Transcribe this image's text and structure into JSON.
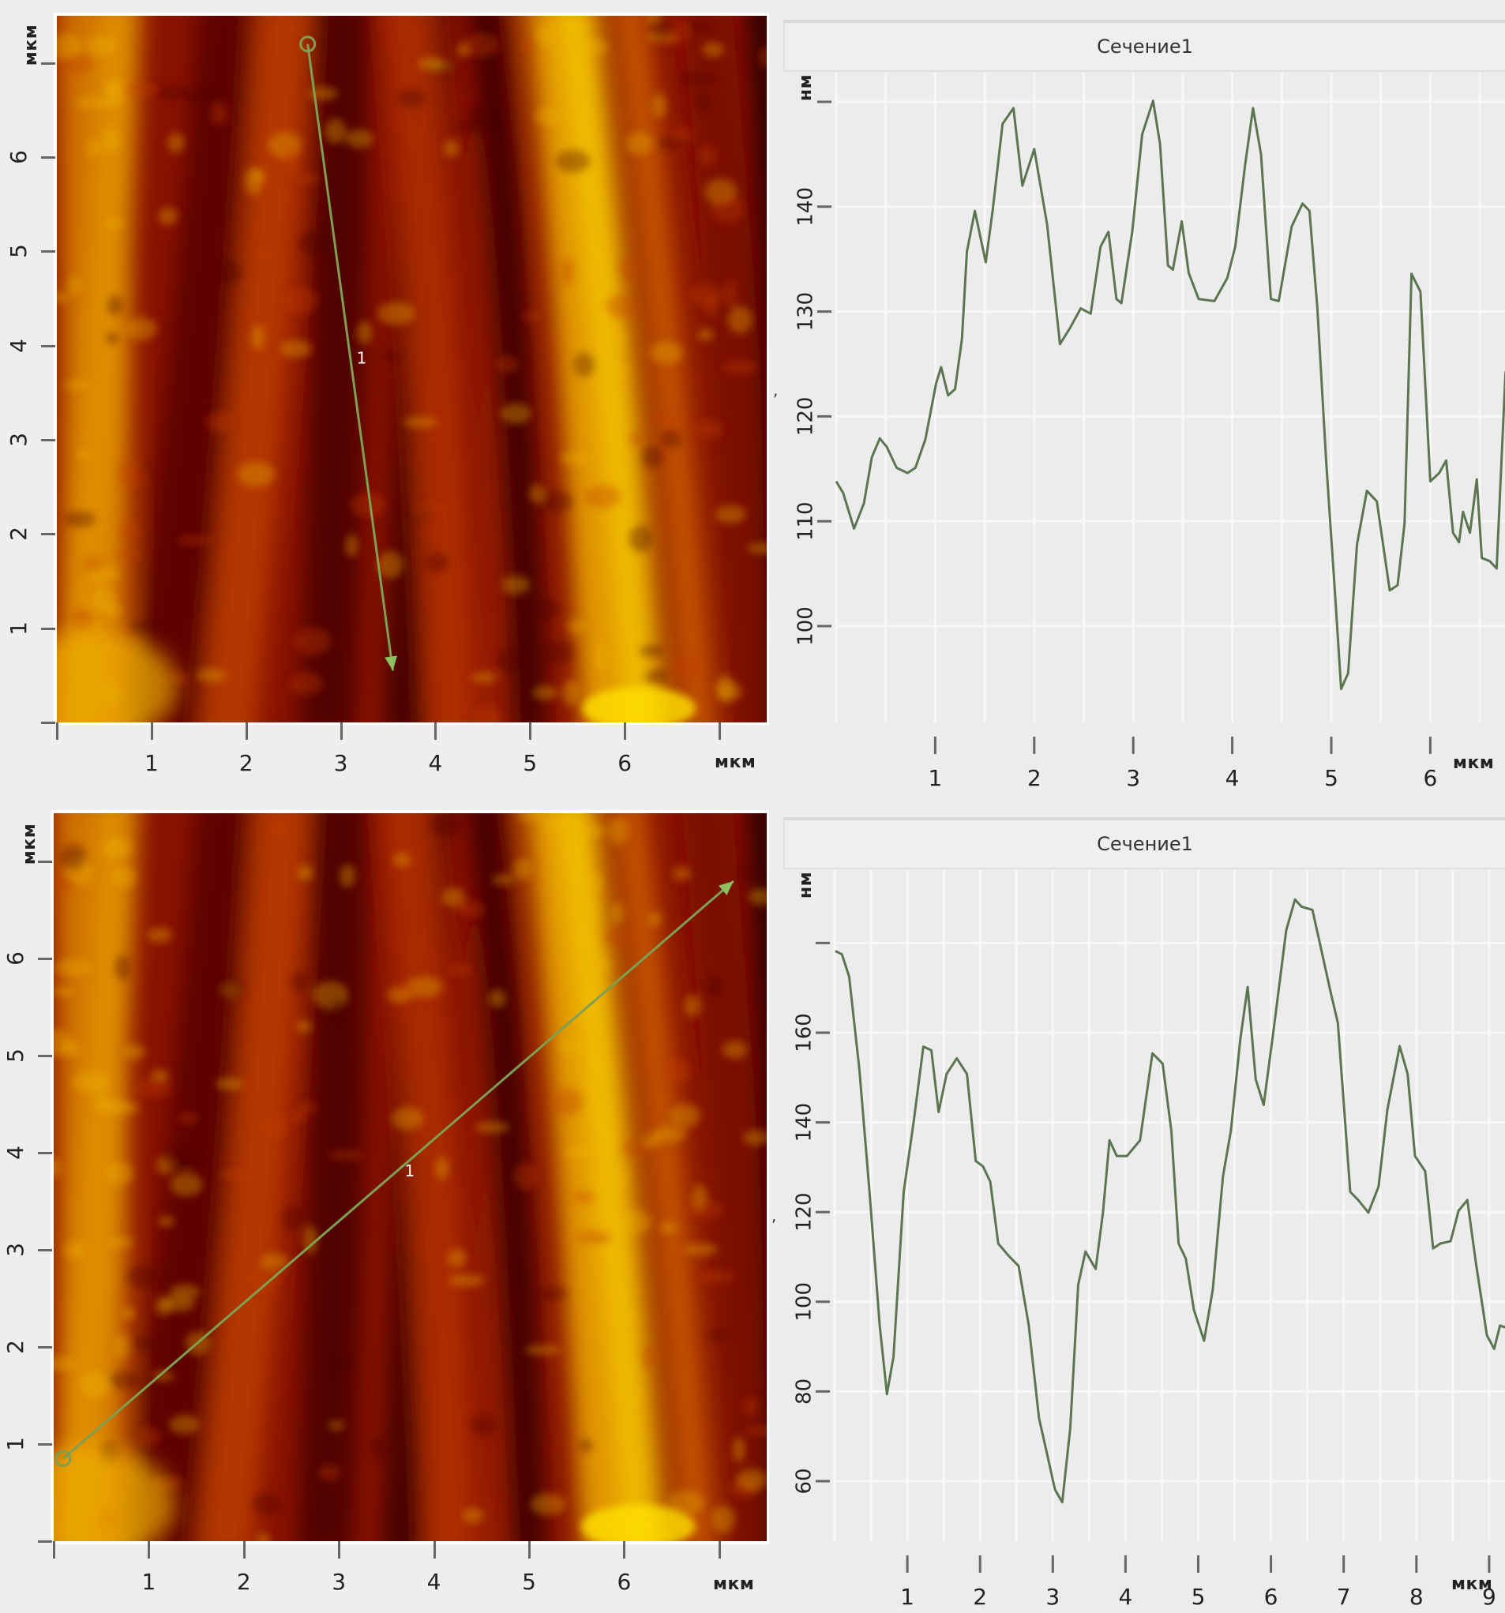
{
  "panels": {
    "top": {
      "image": {
        "y_unit": "мкм",
        "x_unit": "мкм",
        "y_ticks": [
          "1",
          "2",
          "3",
          "4",
          "5",
          "6"
        ],
        "x_ticks": [
          "1",
          "2",
          "3",
          "4",
          "5",
          "6"
        ],
        "section_label": "1",
        "section_line": {
          "start_um": [
            2.65,
            7.2
          ],
          "end_um": [
            3.55,
            0.55
          ]
        },
        "line_color": "#7f9f52"
      },
      "chart": {
        "title": "Сечение1",
        "y_unit": "нм",
        "x_unit": "мкм"
      }
    },
    "bottom": {
      "image": {
        "y_unit": "мкм",
        "x_unit": "мкм",
        "y_ticks": [
          "1",
          "2",
          "3",
          "4",
          "5",
          "6"
        ],
        "x_ticks": [
          "1",
          "2",
          "3",
          "4",
          "5",
          "6"
        ],
        "section_label": "1",
        "section_line": {
          "start_um": [
            0.1,
            0.85
          ],
          "end_um": [
            7.15,
            6.8
          ]
        },
        "line_color": "#7f9f52"
      },
      "chart": {
        "title": "Сечение1",
        "y_unit": "нм",
        "x_unit": "мкм"
      }
    }
  },
  "colors": {
    "profile_line": "#5b7550",
    "grid": "#f8f8f8",
    "panel_bg": "#ececec",
    "afm_dark": "#3a0000",
    "afm_mid": "#a81500",
    "afm_light": "#f4c400"
  },
  "chart_data": [
    {
      "type": "line",
      "title": "Сечение1",
      "xlabel": "мкм",
      "ylabel": "нм",
      "xlim": [
        0,
        6.76
      ],
      "ylim": [
        91,
        152
      ],
      "x_ticks": [
        1,
        2,
        3,
        4,
        5,
        6
      ],
      "y_ticks": [
        100,
        110,
        120,
        130,
        140,
        150
      ],
      "y_tick_labels": [
        "100",
        "110",
        "120",
        "130",
        "140",
        ""
      ],
      "grid": true,
      "series": [
        {
          "name": "Сечение1",
          "x": [
            0,
            0.07,
            0.18,
            0.28,
            0.36,
            0.44,
            0.51,
            0.61,
            0.72,
            0.8,
            0.9,
            1.01,
            1.06,
            1.13,
            1.2,
            1.27,
            1.32,
            1.4,
            1.51,
            1.58,
            1.68,
            1.79,
            1.88,
            2.0,
            2.13,
            2.26,
            2.36,
            2.47,
            2.57,
            2.67,
            2.75,
            2.83,
            2.88,
            2.99,
            3.09,
            3.2,
            3.27,
            3.35,
            3.4,
            3.49,
            3.56,
            3.66,
            3.82,
            3.95,
            4.03,
            4.13,
            4.21,
            4.29,
            4.39,
            4.47,
            4.6,
            4.71,
            4.78,
            4.86,
            4.95,
            5.04,
            5.1,
            5.17,
            5.26,
            5.36,
            5.46,
            5.59,
            5.67,
            5.74,
            5.81,
            5.9,
            6.0,
            6.09,
            6.16,
            6.23,
            6.29,
            6.33,
            6.4,
            6.47,
            6.52,
            6.6,
            6.67,
            6.76
          ],
          "values": [
            113.8,
            112.7,
            109.3,
            111.7,
            116.1,
            117.9,
            117.1,
            115.1,
            114.6,
            115.1,
            117.8,
            123.2,
            124.7,
            122.0,
            122.6,
            127.4,
            135.7,
            139.6,
            134.7,
            139.6,
            147.9,
            149.4,
            142.0,
            145.5,
            138.3,
            126.9,
            128.4,
            130.3,
            129.8,
            136.2,
            137.6,
            131.2,
            130.8,
            137.6,
            146.9,
            150.1,
            146.0,
            134.4,
            134.0,
            138.6,
            133.7,
            131.2,
            131.0,
            133.2,
            136.2,
            144.0,
            149.4,
            145.0,
            131.2,
            131.0,
            138.1,
            140.3,
            139.6,
            130.3,
            115.5,
            102.8,
            94.0,
            95.5,
            107.8,
            112.9,
            111.9,
            103.4,
            103.9,
            109.8,
            133.6,
            131.9,
            113.8,
            114.6,
            115.8,
            108.9,
            108.0,
            110.9,
            108.9,
            114.0,
            106.5,
            106.2,
            105.5,
            124.3
          ]
        }
      ]
    },
    {
      "type": "line",
      "title": "Сечение1",
      "xlabel": "мкм",
      "ylabel": "нм",
      "xlim": [
        0,
        9.22
      ],
      "ylim": [
        50,
        198
      ],
      "x_ticks": [
        1,
        2,
        3,
        4,
        5,
        6,
        7,
        8,
        9
      ],
      "y_ticks": [
        60,
        80,
        100,
        120,
        140,
        160,
        180
      ],
      "y_tick_labels": [
        "60",
        "80",
        "100",
        "120",
        "140",
        "160",
        ""
      ],
      "grid": true,
      "series": [
        {
          "name": "Сечение1",
          "x": [
            0.01,
            0.1,
            0.2,
            0.34,
            0.48,
            0.62,
            0.72,
            0.81,
            0.95,
            1.09,
            1.22,
            1.33,
            1.43,
            1.54,
            1.68,
            1.82,
            1.94,
            2.04,
            2.14,
            2.25,
            2.39,
            2.53,
            2.67,
            2.81,
            2.93,
            3.03,
            3.13,
            3.24,
            3.35,
            3.45,
            3.59,
            3.69,
            3.78,
            3.88,
            4.02,
            4.2,
            4.37,
            4.51,
            4.63,
            4.73,
            4.83,
            4.94,
            5.08,
            5.2,
            5.34,
            5.45,
            5.58,
            5.68,
            5.79,
            5.9,
            6.04,
            6.21,
            6.33,
            6.42,
            6.57,
            6.68,
            6.82,
            6.92,
            7.09,
            7.2,
            7.34,
            7.48,
            7.6,
            7.77,
            7.88,
            7.98,
            8.12,
            8.23,
            8.33,
            8.47,
            8.58,
            8.7,
            8.82,
            8.97,
            9.07,
            9.15,
            9.22
          ],
          "values": [
            178.2,
            177.5,
            172.5,
            151.9,
            124.5,
            94.7,
            79.4,
            87.8,
            124.5,
            140.5,
            156.9,
            156.1,
            142.3,
            150.8,
            154.3,
            150.8,
            131.4,
            130.2,
            126.8,
            113.0,
            110.3,
            108.0,
            94.7,
            74.1,
            65.4,
            58.1,
            55.3,
            71.8,
            103.8,
            111.2,
            107.3,
            119.8,
            136.0,
            132.5,
            132.5,
            136.0,
            155.4,
            153.1,
            138.2,
            113.0,
            109.6,
            98.2,
            91.3,
            102.7,
            127.9,
            138.2,
            158.7,
            170.2,
            149.6,
            143.9,
            161.1,
            182.8,
            189.7,
            188.1,
            187.4,
            179.4,
            169.1,
            162.2,
            124.5,
            122.7,
            119.9,
            125.7,
            142.8,
            157.0,
            150.8,
            132.5,
            129.1,
            111.9,
            113.0,
            113.5,
            120.3,
            122.7,
            108.5,
            92.5,
            89.5,
            94.7,
            94.3
          ]
        }
      ]
    }
  ]
}
